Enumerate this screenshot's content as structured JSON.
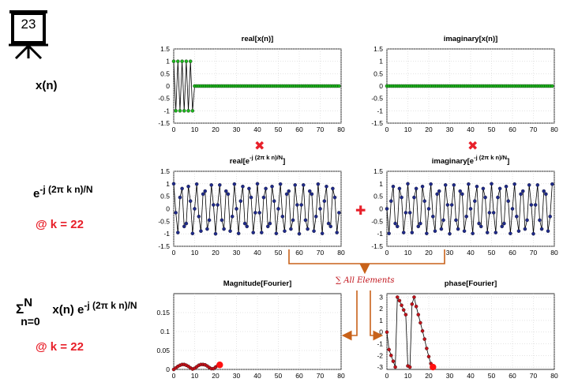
{
  "slide": {
    "number": "23",
    "board_icon": "presentation-board-icon"
  },
  "rows": {
    "row1_label": "x(n)",
    "row2_label_base": "e",
    "row2_label_exp": "-j (2π k n)/N",
    "row2_k": "@ k = 22",
    "row3_sigma": "Σ",
    "row3_sigma_top": "N",
    "row3_sigma_bottom": "n=0",
    "row3_body": " x(n) e",
    "row3_exp": "-j (2π k n)/N",
    "row3_k": "@ k = 22"
  },
  "operators": {
    "multiply": "✖",
    "add": "✚",
    "sum_label": "∑ All Elements"
  },
  "colors": {
    "accent_red": "#e8202a",
    "arrow_orange": "#c8621a",
    "signal_green": "#1db31d",
    "signal_blue": "#1f2a8a",
    "fourier_red": "#c0121a"
  },
  "chart_data": [
    {
      "id": "real_x",
      "type": "line",
      "title": "real[x(n)]",
      "title_exp": "",
      "title_tail": "",
      "xlim": [
        0,
        80
      ],
      "ylim": [
        -1.5,
        1.5
      ],
      "xticks": [
        "0",
        "10",
        "20",
        "30",
        "40",
        "50",
        "60",
        "70",
        "80"
      ],
      "yticks": [
        "1.5",
        "1",
        "0.5",
        "0",
        "-0.5",
        "-1",
        "-1.5"
      ],
      "x": [
        0,
        1,
        2,
        3,
        4,
        5,
        6,
        7,
        8,
        9,
        10,
        11,
        12,
        13,
        14,
        15,
        16,
        17,
        18,
        19,
        20,
        21,
        22,
        23,
        24,
        25,
        26,
        27,
        28,
        29,
        30,
        31,
        32,
        33,
        34,
        35,
        36,
        37,
        38,
        39,
        40,
        41,
        42,
        43,
        44,
        45,
        46,
        47,
        48,
        49,
        50,
        51,
        52,
        53,
        54,
        55,
        56,
        57,
        58,
        59,
        60,
        61,
        62,
        63,
        64,
        65,
        66,
        67,
        68,
        69,
        70,
        71,
        72,
        73,
        74,
        75,
        76,
        77,
        78,
        79
      ],
      "series": [
        {
          "values": [
            1,
            -1,
            1,
            -1,
            1,
            -1,
            1,
            -1,
            1,
            -1,
            0,
            0,
            0,
            0,
            0,
            0,
            0,
            0,
            0,
            0,
            0,
            0,
            0,
            0,
            0,
            0,
            0,
            0,
            0,
            0,
            0,
            0,
            0,
            0,
            0,
            0,
            0,
            0,
            0,
            0,
            0,
            0,
            0,
            0,
            0,
            0,
            0,
            0,
            0,
            0,
            0,
            0,
            0,
            0,
            0,
            0,
            0,
            0,
            0,
            0,
            0,
            0,
            0,
            0,
            0,
            0,
            0,
            0,
            0,
            0,
            0,
            0,
            0,
            0,
            0,
            0,
            0,
            0,
            0,
            0
          ]
        }
      ],
      "marker_color": "#1db31d"
    },
    {
      "id": "imag_x",
      "type": "line",
      "title": "imaginary[x(n)]",
      "title_exp": "",
      "title_tail": "",
      "xlim": [
        0,
        80
      ],
      "ylim": [
        -1.5,
        1.5
      ],
      "xticks": [
        "0",
        "10",
        "20",
        "30",
        "40",
        "50",
        "60",
        "70",
        "80"
      ],
      "yticks": [
        "1.5",
        "1",
        "0.5",
        "0",
        "-0.5",
        "-1",
        "-1.5"
      ],
      "x": [
        0,
        1,
        2,
        3,
        4,
        5,
        6,
        7,
        8,
        9,
        10,
        11,
        12,
        13,
        14,
        15,
        16,
        17,
        18,
        19,
        20,
        21,
        22,
        23,
        24,
        25,
        26,
        27,
        28,
        29,
        30,
        31,
        32,
        33,
        34,
        35,
        36,
        37,
        38,
        39,
        40,
        41,
        42,
        43,
        44,
        45,
        46,
        47,
        48,
        49,
        50,
        51,
        52,
        53,
        54,
        55,
        56,
        57,
        58,
        59,
        60,
        61,
        62,
        63,
        64,
        65,
        66,
        67,
        68,
        69,
        70,
        71,
        72,
        73,
        74,
        75,
        76,
        77,
        78,
        79
      ],
      "series": [
        {
          "values": [
            0,
            0,
            0,
            0,
            0,
            0,
            0,
            0,
            0,
            0,
            0,
            0,
            0,
            0,
            0,
            0,
            0,
            0,
            0,
            0,
            0,
            0,
            0,
            0,
            0,
            0,
            0,
            0,
            0,
            0,
            0,
            0,
            0,
            0,
            0,
            0,
            0,
            0,
            0,
            0,
            0,
            0,
            0,
            0,
            0,
            0,
            0,
            0,
            0,
            0,
            0,
            0,
            0,
            0,
            0,
            0,
            0,
            0,
            0,
            0,
            0,
            0,
            0,
            0,
            0,
            0,
            0,
            0,
            0,
            0,
            0,
            0,
            0,
            0,
            0,
            0,
            0,
            0,
            0,
            0
          ]
        }
      ],
      "marker_color": "#1db31d"
    },
    {
      "id": "real_e",
      "type": "line",
      "title": "real[e",
      "title_exp": "-j (2π k n)/N",
      "title_tail": "]",
      "xlim": [
        0,
        80
      ],
      "ylim": [
        -1.5,
        1.5
      ],
      "xticks": [
        "0",
        "10",
        "20",
        "30",
        "40",
        "50",
        "60",
        "70",
        "80"
      ],
      "yticks": [
        "1.5",
        "1",
        "0.5",
        "0",
        "-0.5",
        "-1",
        "-1.5"
      ],
      "x": [
        0,
        1,
        2,
        3,
        4,
        5,
        6,
        7,
        8,
        9,
        10,
        11,
        12,
        13,
        14,
        15,
        16,
        17,
        18,
        19,
        20,
        21,
        22,
        23,
        24,
        25,
        26,
        27,
        28,
        29,
        30,
        31,
        32,
        33,
        34,
        35,
        36,
        37,
        38,
        39,
        40,
        41,
        42,
        43,
        44,
        45,
        46,
        47,
        48,
        49,
        50,
        51,
        52,
        53,
        54,
        55,
        56,
        57,
        58,
        59,
        60,
        61,
        62,
        63,
        64,
        65,
        66,
        67,
        68,
        69,
        70,
        71,
        72,
        73,
        74,
        75,
        76,
        77,
        78,
        79
      ],
      "series": [
        {
          "values": [
            1.0,
            -0.156,
            -0.951,
            0.454,
            0.809,
            -0.707,
            -0.588,
            0.891,
            0.309,
            -0.988,
            0.0,
            0.988,
            -0.309,
            -0.891,
            0.588,
            0.707,
            -0.809,
            -0.454,
            0.951,
            0.156,
            -1.0,
            0.156,
            0.951,
            -0.454,
            -0.809,
            0.707,
            0.588,
            -0.891,
            -0.309,
            0.988,
            0.0,
            -0.988,
            0.309,
            0.891,
            -0.588,
            -0.707,
            0.809,
            0.454,
            -0.951,
            -0.156,
            1.0,
            -0.156,
            -0.951,
            0.454,
            0.809,
            -0.707,
            -0.588,
            0.891,
            0.309,
            -0.988,
            0.0,
            0.988,
            -0.309,
            -0.891,
            0.588,
            0.707,
            -0.809,
            -0.454,
            0.951,
            0.156,
            -1.0,
            0.156,
            0.951,
            -0.454,
            -0.809,
            0.707,
            0.588,
            -0.891,
            -0.309,
            0.988,
            0.0,
            -0.988,
            0.309,
            0.891,
            -0.588,
            -0.707,
            0.809,
            0.454,
            -0.951,
            -0.156
          ]
        }
      ],
      "marker_color": "#1f2a8a"
    },
    {
      "id": "imag_e",
      "type": "line",
      "title": "imaginary[e",
      "title_exp": "-j (2π k n)/N",
      "title_tail": "]",
      "xlim": [
        0,
        80
      ],
      "ylim": [
        -1.5,
        1.5
      ],
      "xticks": [
        "0",
        "10",
        "20",
        "30",
        "40",
        "50",
        "60",
        "70",
        "80"
      ],
      "yticks": [
        "1.5",
        "1",
        "0.5",
        "0",
        "-0.5",
        "-1",
        "-1.5"
      ],
      "x": [
        0,
        1,
        2,
        3,
        4,
        5,
        6,
        7,
        8,
        9,
        10,
        11,
        12,
        13,
        14,
        15,
        16,
        17,
        18,
        19,
        20,
        21,
        22,
        23,
        24,
        25,
        26,
        27,
        28,
        29,
        30,
        31,
        32,
        33,
        34,
        35,
        36,
        37,
        38,
        39,
        40,
        41,
        42,
        43,
        44,
        45,
        46,
        47,
        48,
        49,
        50,
        51,
        52,
        53,
        54,
        55,
        56,
        57,
        58,
        59,
        60,
        61,
        62,
        63,
        64,
        65,
        66,
        67,
        68,
        69,
        70,
        71,
        72,
        73,
        74,
        75,
        76,
        77,
        78,
        79
      ],
      "series": [
        {
          "values": [
            0.0,
            -0.988,
            0.309,
            0.891,
            -0.588,
            -0.707,
            0.809,
            0.454,
            -0.951,
            -0.156,
            1.0,
            -0.156,
            -0.951,
            0.454,
            0.809,
            -0.707,
            -0.588,
            0.891,
            0.309,
            -0.988,
            0.0,
            0.988,
            -0.309,
            -0.891,
            0.588,
            0.707,
            -0.809,
            -0.454,
            0.951,
            0.156,
            -1.0,
            0.156,
            0.951,
            -0.454,
            -0.809,
            0.707,
            0.588,
            -0.891,
            -0.309,
            0.988,
            0.0,
            -0.988,
            0.309,
            0.891,
            -0.588,
            -0.707,
            0.809,
            0.454,
            -0.951,
            -0.156,
            1.0,
            -0.156,
            -0.951,
            0.454,
            0.809,
            -0.707,
            -0.588,
            0.891,
            0.309,
            -0.988,
            0.0,
            0.988,
            -0.309,
            -0.891,
            0.588,
            0.707,
            -0.809,
            -0.454,
            0.951,
            0.156,
            -1.0,
            0.156,
            0.951,
            -0.454,
            -0.809,
            0.707,
            0.588,
            -0.891,
            -0.309,
            0.988
          ]
        }
      ],
      "marker_color": "#1f2a8a"
    },
    {
      "id": "magnitude",
      "type": "line",
      "title": "Magnitude[Fourier]",
      "title_exp": "",
      "title_tail": "",
      "xlim": [
        0,
        80
      ],
      "ylim": [
        0,
        0.2
      ],
      "xticks": [
        "0",
        "10",
        "20",
        "30",
        "40",
        "50",
        "60",
        "70",
        "80"
      ],
      "yticks": [
        "0.15",
        "0.1",
        "0.05",
        "0"
      ],
      "ytick_values": [
        0.15,
        0.1,
        0.05,
        0
      ],
      "x": [
        0,
        1,
        2,
        3,
        4,
        5,
        6,
        7,
        8,
        9,
        10,
        11,
        12,
        13,
        14,
        15,
        16,
        17,
        18,
        19,
        20,
        21,
        22
      ],
      "series": [
        {
          "values": [
            0.0,
            0.004,
            0.008,
            0.011,
            0.013,
            0.013,
            0.011,
            0.008,
            0.004,
            0.001,
            0.003,
            0.007,
            0.011,
            0.013,
            0.013,
            0.012,
            0.009,
            0.005,
            0.002,
            0.002,
            0.006,
            0.01,
            0.012
          ]
        }
      ],
      "marker_color": "#c0121a",
      "highlight_last": true
    },
    {
      "id": "phase",
      "type": "line",
      "title": "phase[Fourier]",
      "title_exp": "",
      "title_tail": "",
      "xlim": [
        0,
        80
      ],
      "ylim": [
        -3.2,
        3.3
      ],
      "xticks": [
        "0",
        "10",
        "20",
        "30",
        "40",
        "50",
        "60",
        "70",
        "80"
      ],
      "yticks": [
        "3",
        "2",
        "1",
        "0",
        "-1",
        "-2",
        "-3"
      ],
      "ytick_values": [
        3,
        2,
        1,
        0,
        -1,
        -2,
        -3
      ],
      "x": [
        0,
        1,
        2,
        3,
        4,
        5,
        6,
        7,
        8,
        9,
        10,
        11,
        12,
        13,
        14,
        15,
        16,
        17,
        18,
        19,
        20,
        21,
        22
      ],
      "series": [
        {
          "values": [
            0.0,
            -1.5,
            -2.0,
            -2.5,
            -3.0,
            3.0,
            2.7,
            2.3,
            1.9,
            1.5,
            -2.9,
            -3.0,
            2.4,
            3.0,
            2.2,
            1.5,
            0.8,
            0.1,
            -0.6,
            -1.4,
            -2.1,
            -2.7,
            -3.0
          ]
        }
      ],
      "marker_color": "#c0121a",
      "highlight_last": true
    }
  ]
}
